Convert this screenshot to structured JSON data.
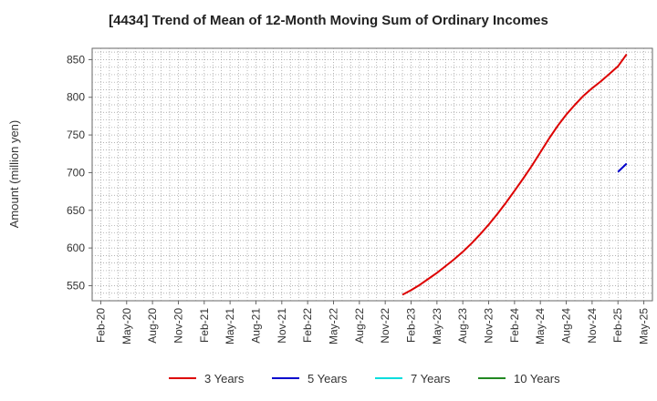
{
  "chart_data": {
    "type": "line",
    "title": "[4434]  Trend of Mean of 12-Month Moving Sum of Ordinary Incomes",
    "ylabel": "Amount (million yen)",
    "xlabel": "",
    "ylim": [
      530,
      865
    ],
    "yticks": [
      550,
      600,
      650,
      700,
      750,
      800,
      850
    ],
    "xticks": [
      "Feb-20",
      "May-20",
      "Aug-20",
      "Nov-20",
      "Feb-21",
      "May-21",
      "Aug-21",
      "Nov-21",
      "Feb-22",
      "May-22",
      "Aug-22",
      "Nov-22",
      "Feb-23",
      "May-23",
      "Aug-23",
      "Nov-23",
      "Feb-24",
      "May-24",
      "Aug-24",
      "Nov-24",
      "Feb-25",
      "May-25"
    ],
    "grid": true,
    "legend_position": "bottom",
    "series": [
      {
        "name": "3 Years",
        "color": "#dd0000",
        "points": [
          [
            "Jan-23",
            538
          ],
          [
            "Feb-23",
            544
          ],
          [
            "Mar-23",
            551
          ],
          [
            "Apr-23",
            559
          ],
          [
            "May-23",
            567
          ],
          [
            "Jun-23",
            576
          ],
          [
            "Jul-23",
            585
          ],
          [
            "Aug-23",
            595
          ],
          [
            "Sep-23",
            606
          ],
          [
            "Oct-23",
            618
          ],
          [
            "Nov-23",
            631
          ],
          [
            "Dec-23",
            645
          ],
          [
            "Jan-24",
            660
          ],
          [
            "Feb-24",
            676
          ],
          [
            "Mar-24",
            692
          ],
          [
            "Apr-24",
            709
          ],
          [
            "May-24",
            727
          ],
          [
            "Jun-24",
            745
          ],
          [
            "Jul-24",
            762
          ],
          [
            "Aug-24",
            777
          ],
          [
            "Sep-24",
            790
          ],
          [
            "Oct-24",
            802
          ],
          [
            "Nov-24",
            812
          ],
          [
            "Dec-24",
            821
          ],
          [
            "Jan-25",
            831
          ],
          [
            "Feb-25",
            841
          ],
          [
            "Mar-25",
            857
          ]
        ]
      },
      {
        "name": "5 Years",
        "color": "#0000cc",
        "points": [
          [
            "Feb-25",
            701
          ],
          [
            "Mar-25",
            712
          ]
        ]
      },
      {
        "name": "7 Years",
        "color": "#00dddd",
        "points": []
      },
      {
        "name": "10 Years",
        "color": "#228822",
        "points": []
      }
    ]
  }
}
